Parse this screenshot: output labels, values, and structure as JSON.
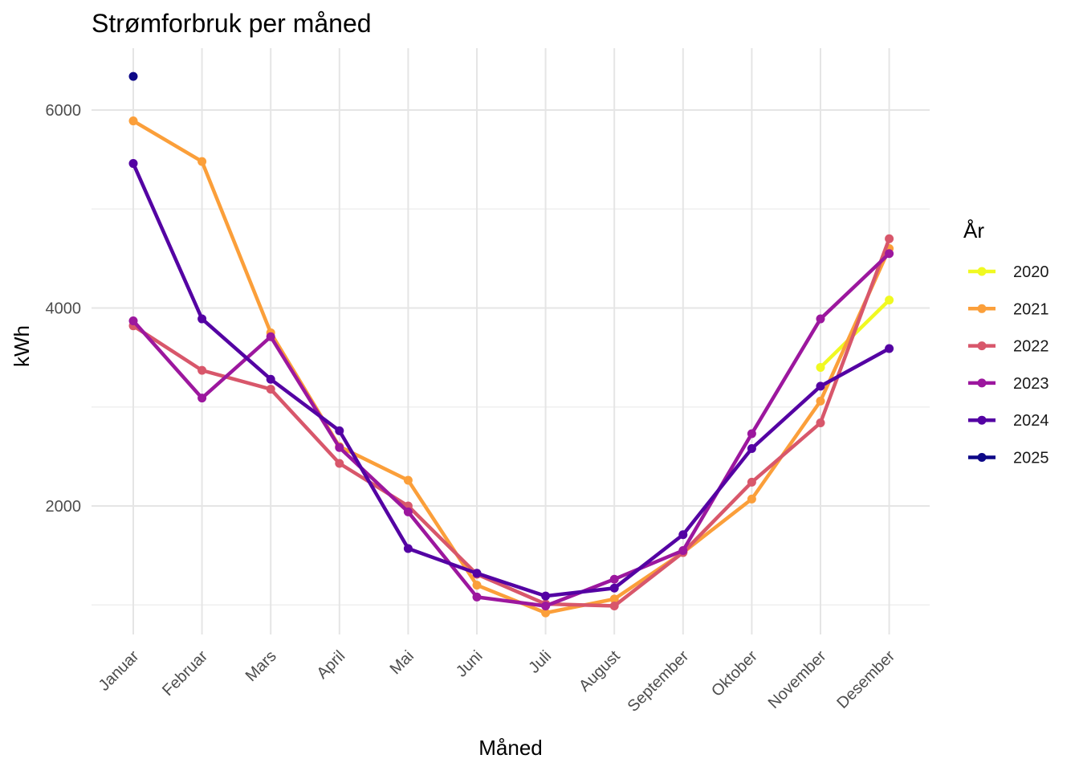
{
  "chart_data": {
    "type": "line",
    "title": "Strømforbruk per måned",
    "xlabel": "Måned",
    "ylabel": "kWh",
    "categories": [
      "Januar",
      "Februar",
      "Mars",
      "April",
      "Mai",
      "Juni",
      "Juli",
      "August",
      "September",
      "Oktober",
      "November",
      "Desember"
    ],
    "ylim": [
      700,
      6600
    ],
    "yticks": [
      2000,
      4000,
      6000
    ],
    "y_minor_ticks": [
      1000,
      3000,
      5000
    ],
    "grid": true,
    "legend": {
      "title": "År",
      "position": "right"
    },
    "series": [
      {
        "name": "2020",
        "color": "#f0f921",
        "values": [
          null,
          null,
          null,
          null,
          null,
          null,
          null,
          null,
          null,
          null,
          3400,
          4080
        ]
      },
      {
        "name": "2021",
        "color": "#fb9f3a",
        "values": [
          5890,
          5480,
          3750,
          2600,
          2260,
          1200,
          920,
          1060,
          1530,
          2070,
          3060,
          4600
        ]
      },
      {
        "name": "2022",
        "color": "#d8576b",
        "values": [
          3820,
          3370,
          3180,
          2430,
          2000,
          1310,
          1010,
          990,
          1530,
          2240,
          2840,
          4700
        ]
      },
      {
        "name": "2023",
        "color": "#9c179e",
        "values": [
          3870,
          3090,
          3710,
          2590,
          1940,
          1080,
          990,
          1260,
          1550,
          2730,
          3890,
          4550
        ]
      },
      {
        "name": "2024",
        "color": "#5402a3",
        "values": [
          5460,
          3890,
          3280,
          2760,
          1570,
          1320,
          1090,
          1170,
          1710,
          2580,
          3210,
          3590
        ]
      },
      {
        "name": "2025",
        "color": "#0d0887",
        "values": [
          6340,
          null,
          null,
          null,
          null,
          null,
          null,
          null,
          null,
          null,
          null,
          null
        ]
      }
    ]
  }
}
